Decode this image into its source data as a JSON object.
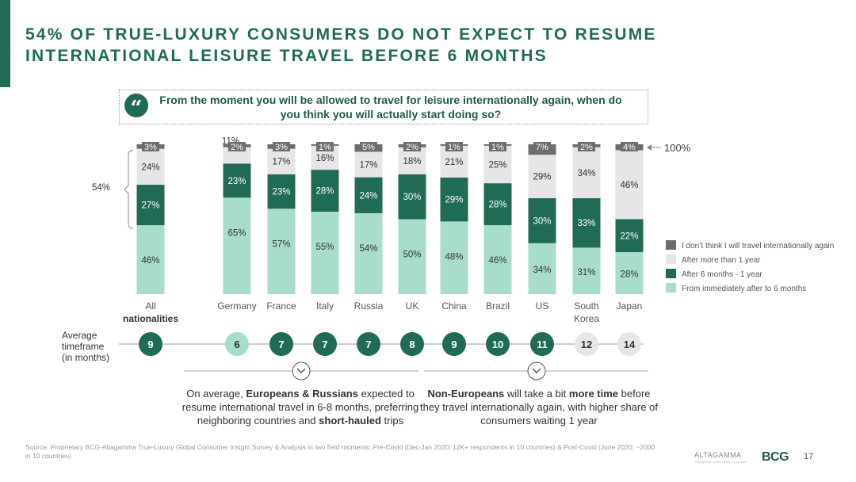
{
  "title": "54% OF TRUE-LUXURY CONSUMERS DO NOT EXPECT TO RESUME INTERNATIONAL LEISURE TRAVEL BEFORE 6 MONTHS",
  "question": {
    "mark": "“",
    "text": "From the moment you will be allowed to travel for leisure internationally again, when do you think you will actually start doing so?"
  },
  "chart_data": {
    "type": "bar",
    "stacked": true,
    "categories": [
      "All nationalities",
      "Germany",
      "France",
      "Italy",
      "Russia",
      "UK",
      "China",
      "Brazil",
      "US",
      "South Korea",
      "Japan"
    ],
    "category_lines": [
      [
        "All",
        "nationalities"
      ],
      [
        "Germany"
      ],
      [
        "France"
      ],
      [
        "Italy"
      ],
      [
        "Russia"
      ],
      [
        "UK"
      ],
      [
        "China"
      ],
      [
        "Brazil"
      ],
      [
        "US"
      ],
      [
        "South",
        "Korea"
      ],
      [
        "Japan"
      ]
    ],
    "series": [
      {
        "name": "From immediately after to 6 months",
        "color": "#a8dccb",
        "values": [
          46,
          65,
          57,
          55,
          54,
          50,
          48,
          46,
          34,
          31,
          28
        ]
      },
      {
        "name": "After 6 months - 1 year",
        "color": "#1f6b56",
        "values": [
          27,
          23,
          23,
          28,
          24,
          30,
          29,
          28,
          30,
          33,
          22
        ]
      },
      {
        "name": "After more than 1 year",
        "color": "#e6e6e9",
        "values": [
          24,
          11,
          17,
          16,
          17,
          18,
          21,
          25,
          29,
          34,
          46
        ]
      },
      {
        "name": "I don’t think I will travel internationally again",
        "color": "#6d6d6d",
        "values": [
          3,
          2,
          3,
          1,
          5,
          2,
          1,
          1,
          7,
          2,
          4
        ]
      }
    ],
    "legend_position": "right",
    "total_label": "100%",
    "bracket_label": "54%",
    "average_timeframe": {
      "label": "Average timeframe (in months)",
      "values": [
        9,
        6,
        7,
        7,
        7,
        8,
        9,
        10,
        11,
        12,
        14
      ],
      "styles": [
        "dark",
        "light",
        "dark",
        "dark",
        "dark",
        "dark",
        "dark",
        "dark",
        "dark",
        "grey",
        "grey"
      ]
    }
  },
  "callouts": {
    "left": {
      "p1": "On average, ",
      "b1": "Europeans & Russians",
      "p2": " expected to resume international travel in 6-8 months, preferring neighboring countries and ",
      "b2": "short-hauled",
      "p3": " trips"
    },
    "right": {
      "b1": "Non-Europeans",
      "p1": " will take a bit ",
      "b2": "more time",
      "p2": " before they travel internationally again, with higher share of consumers waiting 1 year"
    }
  },
  "source": "Source: Proprietary BCG-Altagamma True-Luxury Global Consumer Insight Survey & Analysis in two field moments: Pre-Covid (Dec-Jan 2020; 12K+ respondents in 10 countries) & Post-Covid (June 2020; ~2000 in 10 countries)",
  "page_number": "17",
  "logos": {
    "altagamma": "ALTAGAMMA",
    "altagamma_sub": "CREATIVE CULTURAL ITALIAN",
    "bcg": "BCG"
  },
  "colors": {
    "brand": "#1f6b56",
    "light_green": "#a8dccb",
    "light_grey": "#e6e6e9",
    "dark_grey": "#6d6d6d"
  }
}
